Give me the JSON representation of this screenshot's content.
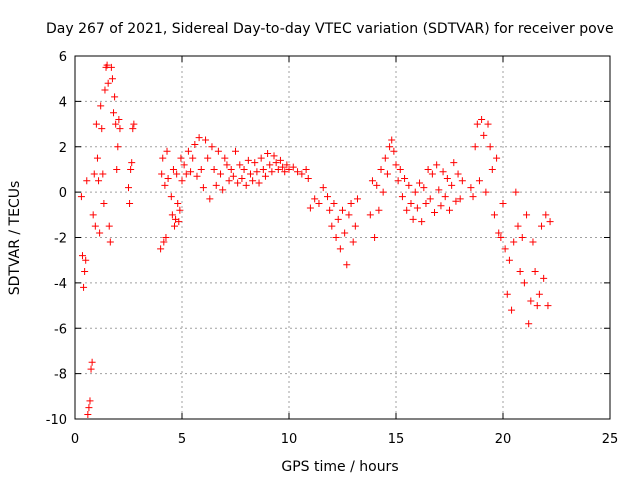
{
  "chart_data": {
    "type": "scatter",
    "title": "Day 267 of 2021, Sidereal Day-to-day VTEC variation (SDTVAR) for receiver pove",
    "xlabel": "GPS time / hours",
    "ylabel": "SDTVAR / TECUs",
    "xlim": [
      0,
      25
    ],
    "ylim": [
      -10,
      6
    ],
    "x_ticks": [
      0,
      5,
      10,
      15,
      20,
      25
    ],
    "y_ticks": [
      -10,
      -8,
      -6,
      -4,
      -2,
      0,
      2,
      4,
      6
    ],
    "x_tick_labels": [
      "0",
      "5",
      "10",
      "15",
      "20",
      "25"
    ],
    "y_tick_labels": [
      "-10",
      "-8",
      "-6",
      "-4",
      "-2",
      "0",
      "2",
      "4",
      "6"
    ],
    "grid": true,
    "marker": "+",
    "marker_color": "#ff0000",
    "series": [
      {
        "name": "SDTVAR",
        "points": [
          [
            0.3,
            -0.2
          ],
          [
            0.35,
            -2.8
          ],
          [
            0.4,
            -4.2
          ],
          [
            0.45,
            -3.5
          ],
          [
            0.5,
            -3.0
          ],
          [
            0.55,
            0.5
          ],
          [
            0.6,
            -9.8
          ],
          [
            0.65,
            -9.5
          ],
          [
            0.7,
            -9.2
          ],
          [
            0.75,
            -7.8
          ],
          [
            0.8,
            -7.5
          ],
          [
            0.85,
            -1.0
          ],
          [
            0.9,
            0.8
          ],
          [
            0.95,
            -1.5
          ],
          [
            1.0,
            3.0
          ],
          [
            1.05,
            1.5
          ],
          [
            1.1,
            0.5
          ],
          [
            1.15,
            -1.8
          ],
          [
            1.2,
            3.8
          ],
          [
            1.25,
            2.8
          ],
          [
            1.3,
            0.8
          ],
          [
            1.35,
            -0.5
          ],
          [
            1.4,
            4.5
          ],
          [
            1.45,
            5.5
          ],
          [
            1.5,
            5.6
          ],
          [
            1.55,
            4.8
          ],
          [
            1.6,
            -1.5
          ],
          [
            1.65,
            -2.2
          ],
          [
            1.7,
            5.5
          ],
          [
            1.75,
            5.0
          ],
          [
            1.8,
            3.5
          ],
          [
            1.85,
            4.2
          ],
          [
            1.9,
            3.0
          ],
          [
            1.95,
            1.0
          ],
          [
            2.0,
            2.0
          ],
          [
            2.05,
            3.2
          ],
          [
            2.1,
            2.8
          ],
          [
            2.5,
            0.2
          ],
          [
            2.55,
            -0.5
          ],
          [
            2.6,
            1.0
          ],
          [
            2.65,
            1.3
          ],
          [
            2.7,
            2.8
          ],
          [
            2.75,
            3.0
          ],
          [
            4.0,
            -2.5
          ],
          [
            4.05,
            0.8
          ],
          [
            4.1,
            1.5
          ],
          [
            4.15,
            -2.2
          ],
          [
            4.2,
            0.3
          ],
          [
            4.25,
            -2.0
          ],
          [
            4.3,
            1.8
          ],
          [
            4.35,
            0.6
          ],
          [
            4.5,
            -0.2
          ],
          [
            4.55,
            -1.0
          ],
          [
            4.6,
            1.0
          ],
          [
            4.65,
            -1.5
          ],
          [
            4.7,
            -1.2
          ],
          [
            4.75,
            0.8
          ],
          [
            4.8,
            -0.5
          ],
          [
            4.85,
            -1.3
          ],
          [
            4.9,
            -0.8
          ],
          [
            4.95,
            1.5
          ],
          [
            5.0,
            0.5
          ],
          [
            5.1,
            1.2
          ],
          [
            5.2,
            0.8
          ],
          [
            5.3,
            1.8
          ],
          [
            5.4,
            0.9
          ],
          [
            5.5,
            1.5
          ],
          [
            5.6,
            2.1
          ],
          [
            5.7,
            0.7
          ],
          [
            5.8,
            2.4
          ],
          [
            5.9,
            1.0
          ],
          [
            6.0,
            0.2
          ],
          [
            6.1,
            2.3
          ],
          [
            6.2,
            1.5
          ],
          [
            6.3,
            -0.3
          ],
          [
            6.4,
            2.0
          ],
          [
            6.5,
            1.0
          ],
          [
            6.6,
            0.3
          ],
          [
            6.7,
            1.8
          ],
          [
            6.8,
            0.8
          ],
          [
            6.9,
            0.1
          ],
          [
            7.0,
            1.5
          ],
          [
            7.1,
            1.2
          ],
          [
            7.2,
            0.5
          ],
          [
            7.3,
            1.0
          ],
          [
            7.4,
            0.7
          ],
          [
            7.5,
            1.8
          ],
          [
            7.6,
            0.4
          ],
          [
            7.7,
            1.2
          ],
          [
            7.8,
            0.6
          ],
          [
            7.9,
            1.0
          ],
          [
            8.0,
            0.3
          ],
          [
            8.1,
            1.4
          ],
          [
            8.2,
            0.8
          ],
          [
            8.3,
            0.5
          ],
          [
            8.4,
            1.3
          ],
          [
            8.5,
            0.9
          ],
          [
            8.6,
            0.4
          ],
          [
            8.7,
            1.5
          ],
          [
            8.8,
            1.0
          ],
          [
            8.9,
            0.7
          ],
          [
            9.0,
            1.7
          ],
          [
            9.1,
            1.2
          ],
          [
            9.2,
            0.9
          ],
          [
            9.3,
            1.6
          ],
          [
            9.4,
            1.3
          ],
          [
            9.5,
            1.0
          ],
          [
            9.6,
            1.4
          ],
          [
            9.7,
            1.1
          ],
          [
            9.8,
            0.9
          ],
          [
            9.9,
            1.2
          ],
          [
            10.0,
            1.0
          ],
          [
            10.2,
            1.1
          ],
          [
            10.4,
            0.9
          ],
          [
            10.6,
            0.8
          ],
          [
            10.8,
            1.0
          ],
          [
            10.9,
            0.6
          ],
          [
            11.0,
            -0.7
          ],
          [
            11.2,
            -0.3
          ],
          [
            11.4,
            -0.5
          ],
          [
            11.6,
            0.2
          ],
          [
            11.8,
            -0.2
          ],
          [
            11.9,
            -0.8
          ],
          [
            12.0,
            -1.5
          ],
          [
            12.1,
            -0.5
          ],
          [
            12.2,
            -2.0
          ],
          [
            12.3,
            -1.2
          ],
          [
            12.4,
            -2.5
          ],
          [
            12.5,
            -0.8
          ],
          [
            12.6,
            -1.8
          ],
          [
            12.7,
            -3.2
          ],
          [
            12.8,
            -1.0
          ],
          [
            12.9,
            -0.5
          ],
          [
            13.0,
            -2.2
          ],
          [
            13.1,
            -1.5
          ],
          [
            13.2,
            -0.3
          ],
          [
            13.8,
            -1.0
          ],
          [
            13.9,
            0.5
          ],
          [
            14.0,
            -2.0
          ],
          [
            14.1,
            0.3
          ],
          [
            14.2,
            -0.8
          ],
          [
            14.3,
            1.0
          ],
          [
            14.4,
            0.0
          ],
          [
            14.5,
            1.5
          ],
          [
            14.6,
            0.8
          ],
          [
            14.7,
            2.0
          ],
          [
            14.8,
            2.3
          ],
          [
            14.9,
            1.8
          ],
          [
            15.0,
            1.2
          ],
          [
            15.1,
            0.5
          ],
          [
            15.2,
            1.0
          ],
          [
            15.3,
            -0.2
          ],
          [
            15.4,
            0.6
          ],
          [
            15.5,
            -0.8
          ],
          [
            15.6,
            0.3
          ],
          [
            15.7,
            -0.5
          ],
          [
            15.8,
            -1.2
          ],
          [
            15.9,
            0.0
          ],
          [
            16.0,
            -0.7
          ],
          [
            16.1,
            0.4
          ],
          [
            16.2,
            -1.3
          ],
          [
            16.3,
            0.2
          ],
          [
            16.4,
            -0.5
          ],
          [
            16.5,
            1.0
          ],
          [
            16.6,
            -0.3
          ],
          [
            16.7,
            0.8
          ],
          [
            16.8,
            -0.9
          ],
          [
            16.9,
            1.2
          ],
          [
            17.0,
            0.1
          ],
          [
            17.1,
            -0.6
          ],
          [
            17.2,
            0.9
          ],
          [
            17.3,
            -0.2
          ],
          [
            17.4,
            0.6
          ],
          [
            17.5,
            -0.8
          ],
          [
            17.6,
            0.3
          ],
          [
            17.7,
            1.3
          ],
          [
            17.8,
            -0.4
          ],
          [
            17.9,
            0.8
          ],
          [
            18.0,
            -0.3
          ],
          [
            18.1,
            0.5
          ],
          [
            18.5,
            0.2
          ],
          [
            18.6,
            -0.2
          ],
          [
            18.7,
            2.0
          ],
          [
            18.8,
            3.0
          ],
          [
            18.9,
            0.5
          ],
          [
            19.0,
            3.2
          ],
          [
            19.1,
            2.5
          ],
          [
            19.2,
            0.0
          ],
          [
            19.3,
            3.0
          ],
          [
            19.4,
            2.0
          ],
          [
            19.5,
            1.0
          ],
          [
            19.6,
            -1.0
          ],
          [
            19.7,
            1.5
          ],
          [
            19.8,
            -1.8
          ],
          [
            19.9,
            -2.0
          ],
          [
            20.0,
            -0.5
          ],
          [
            20.1,
            -2.5
          ],
          [
            20.2,
            -4.5
          ],
          [
            20.3,
            -3.0
          ],
          [
            20.4,
            -5.2
          ],
          [
            20.5,
            -2.2
          ],
          [
            20.6,
            0.0
          ],
          [
            20.7,
            -1.5
          ],
          [
            20.8,
            -3.5
          ],
          [
            20.9,
            -2.0
          ],
          [
            21.0,
            -4.0
          ],
          [
            21.1,
            -1.0
          ],
          [
            21.2,
            -5.8
          ],
          [
            21.3,
            -4.8
          ],
          [
            21.4,
            -2.2
          ],
          [
            21.5,
            -3.5
          ],
          [
            21.6,
            -5.0
          ],
          [
            21.7,
            -4.5
          ],
          [
            21.8,
            -1.5
          ],
          [
            21.9,
            -3.8
          ],
          [
            22.0,
            -1.0
          ],
          [
            22.1,
            -5.0
          ],
          [
            22.2,
            -1.3
          ]
        ]
      }
    ]
  }
}
